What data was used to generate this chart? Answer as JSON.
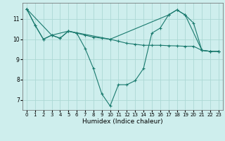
{
  "xlabel": "Humidex (Indice chaleur)",
  "xlim": [
    -0.5,
    23.5
  ],
  "ylim": [
    6.5,
    11.8
  ],
  "xticks": [
    0,
    1,
    2,
    3,
    4,
    5,
    6,
    7,
    8,
    9,
    10,
    11,
    12,
    13,
    14,
    15,
    16,
    17,
    18,
    19,
    20,
    21,
    22,
    23
  ],
  "yticks": [
    7,
    8,
    9,
    10,
    11
  ],
  "bg_color": "#ceeeed",
  "grid_color": "#acd8d5",
  "line_color": "#1a7a6e",
  "line1_x": [
    0,
    1,
    2,
    3,
    4,
    5,
    6,
    7,
    8,
    9,
    10,
    11,
    12,
    13,
    14,
    15,
    16,
    17,
    18,
    19,
    20,
    21,
    22,
    23
  ],
  "line1_y": [
    11.5,
    10.7,
    10.0,
    10.2,
    10.05,
    10.4,
    10.3,
    9.55,
    8.55,
    7.3,
    6.7,
    7.75,
    7.75,
    7.95,
    8.55,
    10.3,
    10.55,
    11.2,
    11.45,
    11.2,
    10.8,
    9.45,
    9.4,
    9.4
  ],
  "line2_x": [
    0,
    1,
    2,
    3,
    4,
    5,
    6,
    7,
    8,
    9,
    10,
    11,
    12,
    13,
    14,
    15,
    16,
    17,
    18,
    19,
    20,
    21,
    22,
    23
  ],
  "line2_y": [
    11.5,
    10.7,
    10.0,
    10.2,
    10.05,
    10.4,
    10.3,
    10.2,
    10.1,
    10.05,
    10.0,
    9.9,
    9.8,
    9.75,
    9.7,
    9.7,
    9.7,
    9.68,
    9.67,
    9.65,
    9.65,
    9.45,
    9.4,
    9.4
  ],
  "line3_x": [
    0,
    3,
    5,
    10,
    17,
    18,
    19,
    21,
    22,
    23
  ],
  "line3_y": [
    11.5,
    10.2,
    10.4,
    10.0,
    11.2,
    11.45,
    11.2,
    9.45,
    9.4,
    9.4
  ]
}
